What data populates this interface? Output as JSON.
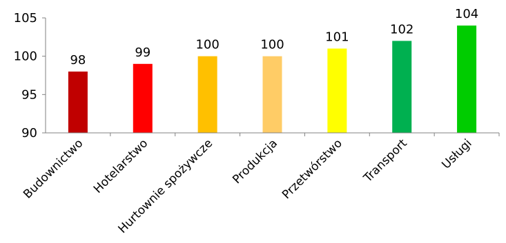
{
  "chart_data": {
    "type": "bar",
    "categories": [
      "Budownictwo",
      "Hotelarstwo",
      "Hurtownie spożywcze",
      "Produkcja",
      "Przetwórstwo",
      "Transport",
      "Usługi"
    ],
    "values": [
      98,
      99,
      100,
      100,
      101,
      102,
      104
    ],
    "data_labels": [
      "98",
      "99",
      "100",
      "100",
      "101",
      "102",
      "104"
    ],
    "colors": [
      "#c00000",
      "#ff0000",
      "#ffc000",
      "#ffcc66",
      "#ffff00",
      "#00b050",
      "#00cc00"
    ],
    "ylim": [
      90,
      105
    ],
    "yticks": [
      90,
      95,
      100,
      105
    ],
    "ytick_labels": [
      "90",
      "95",
      "100",
      "105"
    ],
    "title": "",
    "xlabel": "",
    "ylabel": "",
    "grid": false,
    "legend": "none"
  }
}
